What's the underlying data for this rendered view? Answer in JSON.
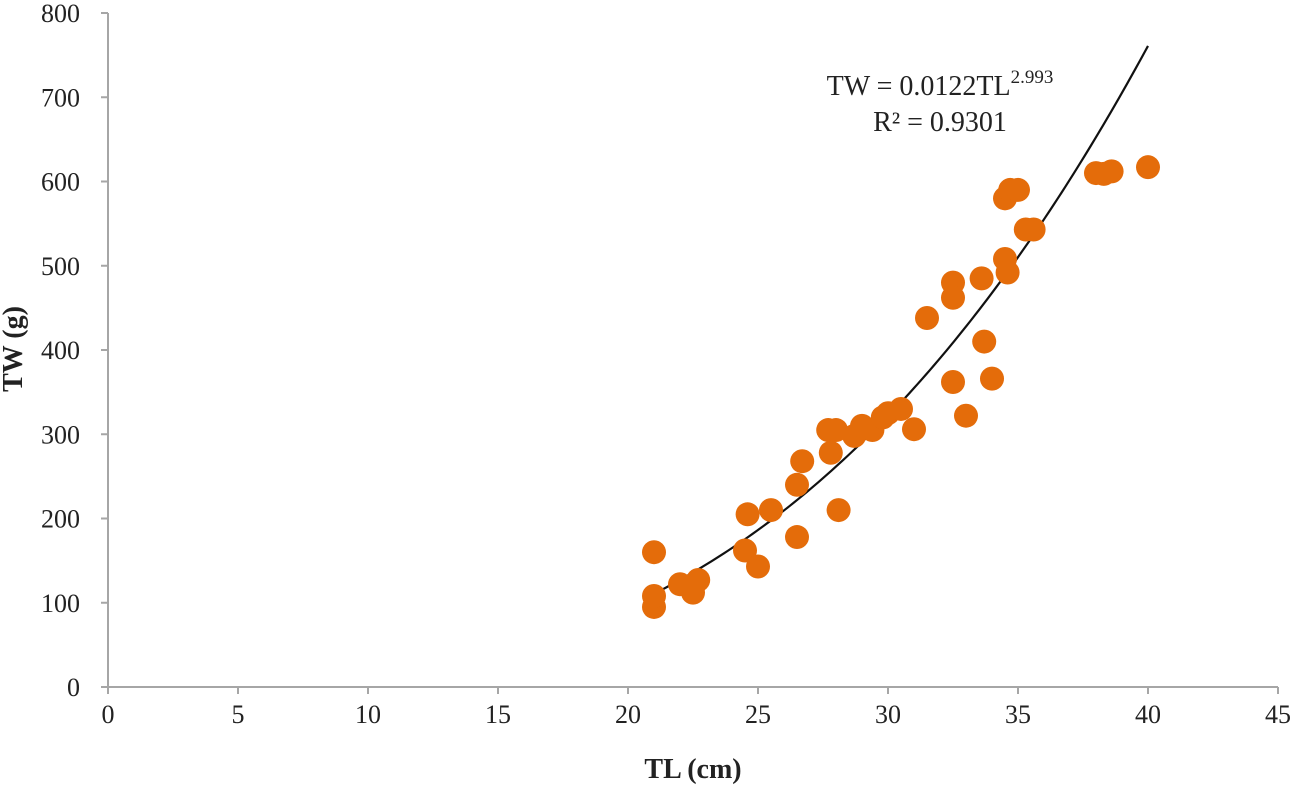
{
  "chart_data": {
    "type": "scatter",
    "xlabel": "TL (cm)",
    "ylabel": "TW (g)",
    "xlim": [
      0,
      45
    ],
    "ylim": [
      0,
      800
    ],
    "xticks": [
      0,
      5,
      10,
      15,
      20,
      25,
      30,
      35,
      40,
      45
    ],
    "yticks": [
      0,
      100,
      200,
      300,
      400,
      500,
      600,
      700,
      800
    ],
    "grid": false,
    "marker_color": "#E46C0A",
    "trendline_color": "#000000",
    "series": [
      {
        "points": [
          [
            21.0,
            160
          ],
          [
            21.0,
            95
          ],
          [
            21.0,
            108
          ],
          [
            22.0,
            122
          ],
          [
            22.5,
            112
          ],
          [
            22.7,
            127
          ],
          [
            24.5,
            162
          ],
          [
            24.6,
            205
          ],
          [
            25.0,
            143
          ],
          [
            25.5,
            210
          ],
          [
            26.5,
            240
          ],
          [
            26.5,
            178
          ],
          [
            26.7,
            268
          ],
          [
            27.7,
            305
          ],
          [
            27.8,
            278
          ],
          [
            28.0,
            305
          ],
          [
            28.1,
            210
          ],
          [
            28.7,
            298
          ],
          [
            29.0,
            310
          ],
          [
            29.4,
            305
          ],
          [
            29.8,
            320
          ],
          [
            30.0,
            325
          ],
          [
            30.5,
            330
          ],
          [
            31.0,
            306
          ],
          [
            31.5,
            438
          ],
          [
            32.5,
            480
          ],
          [
            32.5,
            462
          ],
          [
            32.5,
            362
          ],
          [
            33.0,
            322
          ],
          [
            33.6,
            485
          ],
          [
            33.7,
            410
          ],
          [
            34.0,
            366
          ],
          [
            34.5,
            580
          ],
          [
            34.5,
            508
          ],
          [
            34.6,
            492
          ],
          [
            34.7,
            590
          ],
          [
            35.0,
            590
          ],
          [
            35.3,
            543
          ],
          [
            35.6,
            543
          ],
          [
            38.0,
            610
          ],
          [
            38.3,
            609
          ],
          [
            38.6,
            612
          ],
          [
            40.0,
            617
          ]
        ]
      }
    ],
    "trendline": {
      "type": "power",
      "a": 0.0122,
      "b": 2.993,
      "x_range": [
        21,
        40
      ]
    },
    "annotations": {
      "equation_base": "TW = 0.0122TL",
      "equation_exponent": "2.993",
      "r_squared": "R² = 0.9301"
    }
  }
}
